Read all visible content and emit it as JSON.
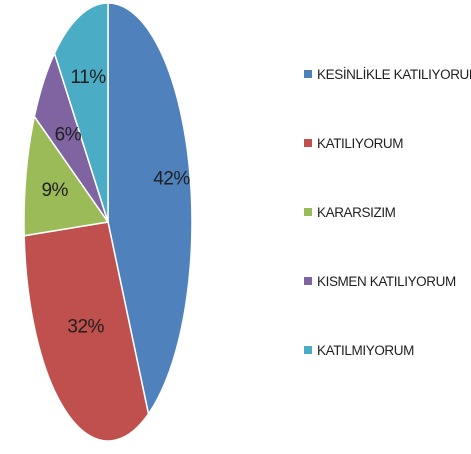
{
  "chart_data": {
    "type": "pie",
    "title": "",
    "categories": [
      "KESİNLİKLE KATILIYORUM",
      "KATILIYORUM",
      "KARARSIZIM",
      "KISMEN KATILIYORUM",
      "KATILMIYORUM"
    ],
    "values": [
      42,
      32,
      9,
      6,
      11
    ],
    "value_labels": [
      "42%",
      "32%",
      "9%",
      "6%",
      "11%"
    ],
    "colors": [
      "#4f81bd",
      "#c0504d",
      "#9bbb59",
      "#8064a2",
      "#4bacc6"
    ],
    "legend_position": "right"
  }
}
